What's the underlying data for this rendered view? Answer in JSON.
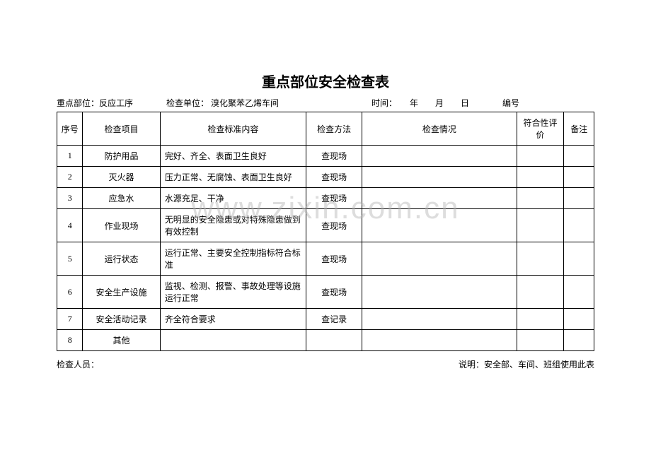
{
  "title": "重点部位安全检查表",
  "info": {
    "key_part_label": "重点部位：",
    "key_part_value": "反应工序",
    "unit_label": "检查单位：",
    "unit_value": " 溴化聚苯乙烯车间",
    "time_label": "时间：",
    "time_value": "　　年　　月　　日",
    "serial_label": "编号"
  },
  "headers": {
    "seq": "序号",
    "item": "检查项目",
    "std": "检查标准内容",
    "method": "检查方法",
    "status": "检查情况",
    "eval": "符合性评价",
    "remark": "备注"
  },
  "rows": [
    {
      "seq": "1",
      "item": "防护用品",
      "std": "完好、齐全、表面卫生良好",
      "method": "查现场",
      "status": "",
      "eval": "",
      "remark": ""
    },
    {
      "seq": "2",
      "item": "灭火器",
      "std": "压力正常、无腐蚀、表面卫生良好",
      "method": "查现场",
      "status": "",
      "eval": "",
      "remark": ""
    },
    {
      "seq": "3",
      "item": "应急水",
      "std": "水源充足、干净",
      "method": "查现场",
      "status": "",
      "eval": "",
      "remark": ""
    },
    {
      "seq": "4",
      "item": "作业现场",
      "std": "无明显的安全隐患或对特殊隐患做到有效控制",
      "method": "查现场",
      "status": "",
      "eval": "",
      "remark": ""
    },
    {
      "seq": "5",
      "item": "运行状态",
      "std": "运行正常、主要安全控制指标符合标准",
      "method": "查现场",
      "status": "",
      "eval": "",
      "remark": ""
    },
    {
      "seq": "6",
      "item": "安全生产设施",
      "std": "监视、检测、报警、事故处理等设施运行正常",
      "method": "查现场",
      "status": "",
      "eval": "",
      "remark": ""
    },
    {
      "seq": "7",
      "item": "安全活动记录",
      "std": "齐全符合要求",
      "method": "查记录",
      "status": "",
      "eval": "",
      "remark": ""
    },
    {
      "seq": "8",
      "item": "其他",
      "std": "",
      "method": "",
      "status": "",
      "eval": "",
      "remark": ""
    }
  ],
  "footer": {
    "inspector_label": "检查人员：",
    "note": "说明：安全部、车间、班组使用此表"
  },
  "watermark": "www.zixin.com.cn"
}
